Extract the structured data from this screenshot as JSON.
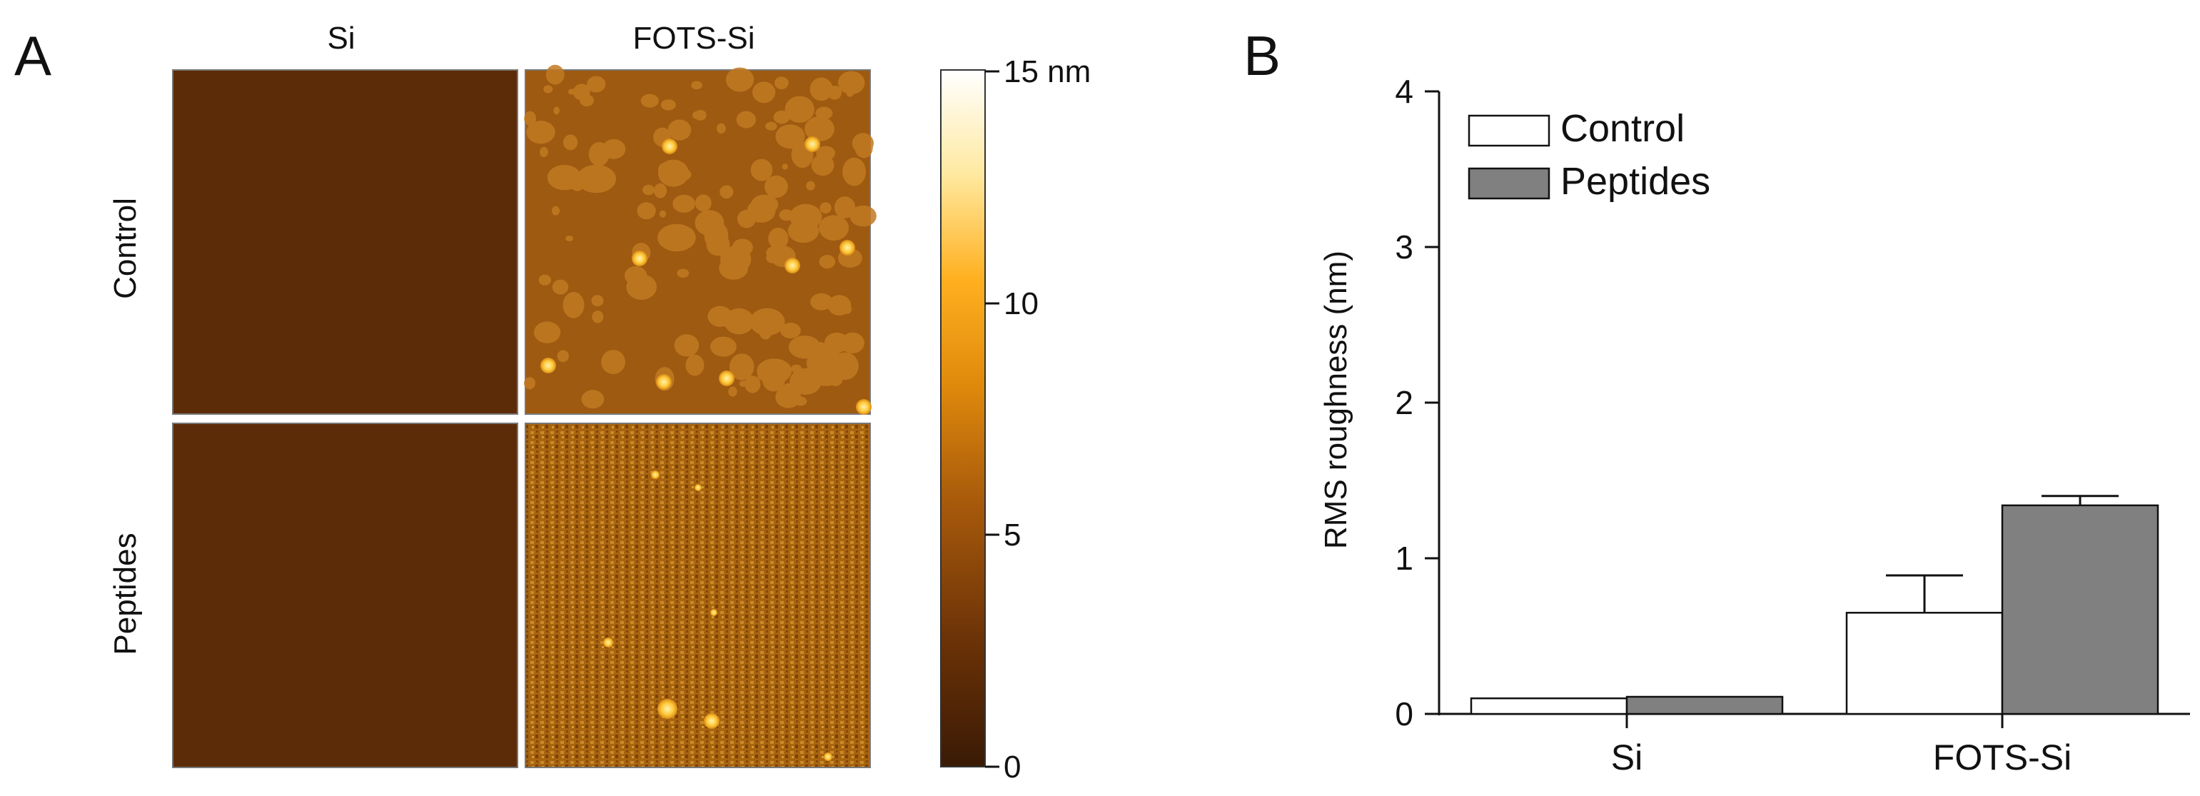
{
  "panel_a": {
    "letter": "A",
    "column_labels": [
      "Si",
      "FOTS-Si"
    ],
    "row_labels": [
      "Control",
      "Peptides"
    ],
    "colorbar": {
      "ticks": [
        "15 nm",
        "10",
        "5",
        "0"
      ],
      "min": 0,
      "max": 15,
      "unit": "nm",
      "colors": [
        "#3a1a05",
        "#6b3207",
        "#a85a0b",
        "#e08a0c",
        "#ffb020",
        "#ffe9a0",
        "#ffffff"
      ]
    },
    "colors": {
      "si_bg": "#5c2c08",
      "fots_control_bg": "#9e5a10",
      "fots_control_blob": "#c27a22",
      "fots_peptides_bg": "#a8640f",
      "spot": "#ffd24a"
    }
  },
  "panel_b": {
    "letter": "B",
    "legend": [
      "Control",
      "Peptides"
    ],
    "colors": {
      "control": "#ffffff",
      "peptides": "#808080",
      "axis": "#111111"
    }
  },
  "chart_data": {
    "type": "bar",
    "title": "",
    "categories": [
      "Si",
      "FOTS-Si"
    ],
    "series": [
      {
        "name": "Control",
        "values": [
          0.1,
          0.65
        ],
        "error": [
          0.0,
          0.24
        ]
      },
      {
        "name": "Peptides",
        "values": [
          0.11,
          1.34
        ],
        "error": [
          0.0,
          0.06
        ]
      }
    ],
    "xlabel": "",
    "ylabel": "RMS roughness (nm)",
    "ylim": [
      0,
      4
    ],
    "yticks": [
      0,
      1,
      2,
      3,
      4
    ],
    "grid": false,
    "legend_position": "top-left"
  }
}
